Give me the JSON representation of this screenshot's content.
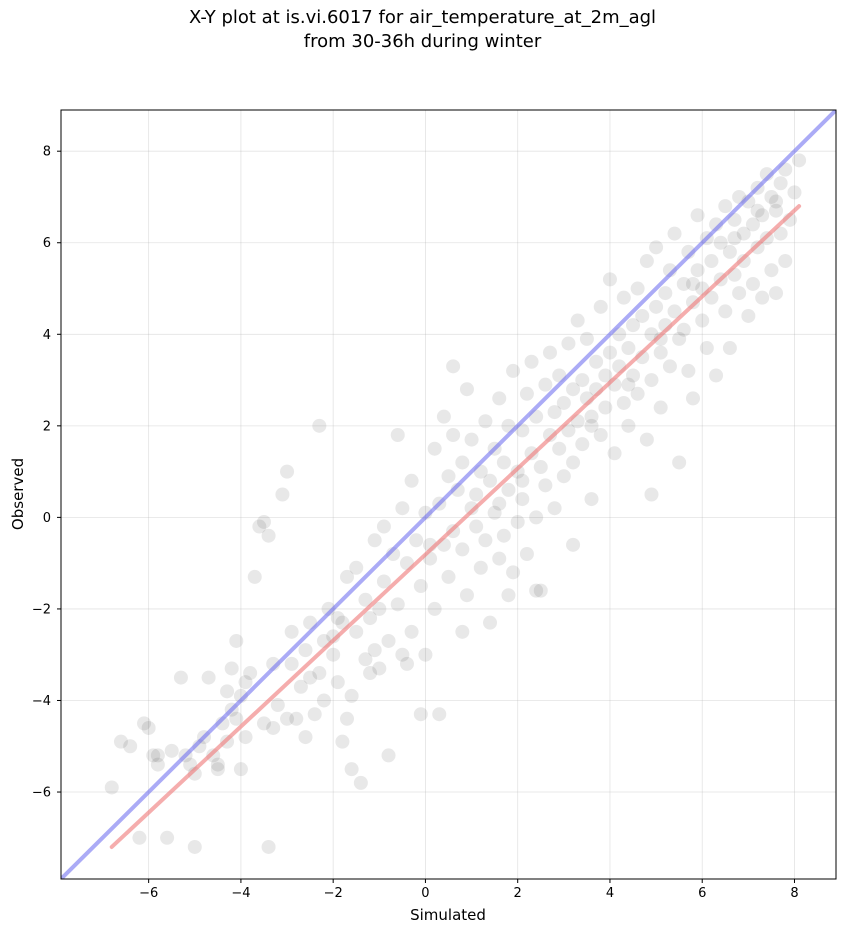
{
  "chart_data": {
    "type": "scatter",
    "title_line1": "X-Y plot at is.vi.6017 for air_temperature_at_2m_agl",
    "title_line2": "from 30-36h during winter",
    "xlabel": "Simulated",
    "ylabel": "Observed",
    "xlim": [
      -7.9,
      8.9
    ],
    "ylim": [
      -7.9,
      8.9
    ],
    "xticks": [
      -6,
      -4,
      -2,
      0,
      2,
      4,
      6,
      8
    ],
    "yticks": [
      -6,
      -4,
      -2,
      0,
      2,
      4,
      6,
      8
    ],
    "xtick_labels": [
      "−6",
      "−4",
      "−2",
      "0",
      "2",
      "4",
      "6",
      "8"
    ],
    "ytick_labels": [
      "−6",
      "−4",
      "−2",
      "0",
      "2",
      "4",
      "6",
      "8"
    ],
    "grid": true,
    "point_color": "#444444",
    "one_to_one_line": {
      "x": [
        -7.9,
        8.9
      ],
      "y": [
        -7.9,
        8.9
      ],
      "color": "#6666ee"
    },
    "regression_line": {
      "x": [
        -6.8,
        8.1
      ],
      "y": [
        -7.2,
        6.8
      ],
      "color": "#ee7777"
    },
    "points": [
      [
        -6.8,
        -5.9
      ],
      [
        -6.6,
        -4.9
      ],
      [
        -6.4,
        -5.0
      ],
      [
        -6.2,
        -7.0
      ],
      [
        -6.1,
        -4.5
      ],
      [
        -6.0,
        -4.6
      ],
      [
        -5.9,
        -5.2
      ],
      [
        -5.8,
        -5.4
      ],
      [
        -5.6,
        -7.0
      ],
      [
        -5.5,
        -5.1
      ],
      [
        -5.3,
        -3.5
      ],
      [
        -5.2,
        -5.2
      ],
      [
        -5.1,
        -5.4
      ],
      [
        -5.0,
        -7.2
      ],
      [
        -5.0,
        -5.6
      ],
      [
        -4.9,
        -5.0
      ],
      [
        -4.8,
        -4.8
      ],
      [
        -4.7,
        -3.5
      ],
      [
        -4.6,
        -5.2
      ],
      [
        -4.5,
        -5.4
      ],
      [
        -4.4,
        -4.5
      ],
      [
        -4.3,
        -3.8
      ],
      [
        -4.3,
        -4.9
      ],
      [
        -4.2,
        -4.2
      ],
      [
        -4.2,
        -3.3
      ],
      [
        -4.1,
        -2.7
      ],
      [
        -4.1,
        -4.4
      ],
      [
        -4.0,
        -3.9
      ],
      [
        -4.0,
        -5.5
      ],
      [
        -3.9,
        -3.6
      ],
      [
        -3.8,
        -3.4
      ],
      [
        -3.7,
        -1.3
      ],
      [
        -3.6,
        -0.2
      ],
      [
        -3.5,
        -0.1
      ],
      [
        -3.4,
        -7.2
      ],
      [
        -3.4,
        -0.4
      ],
      [
        -3.3,
        -4.6
      ],
      [
        -3.3,
        -3.2
      ],
      [
        -3.2,
        -4.1
      ],
      [
        -3.1,
        0.5
      ],
      [
        -3.0,
        1.0
      ],
      [
        -3.0,
        -4.4
      ],
      [
        -2.9,
        -2.5
      ],
      [
        -2.8,
        -4.4
      ],
      [
        -2.7,
        -3.7
      ],
      [
        -2.6,
        -2.9
      ],
      [
        -2.5,
        -2.3
      ],
      [
        -2.5,
        -3.5
      ],
      [
        -2.4,
        -4.3
      ],
      [
        -2.3,
        -3.4
      ],
      [
        -2.2,
        -2.7
      ],
      [
        -2.2,
        -4.0
      ],
      [
        -2.1,
        -2.0
      ],
      [
        -2.0,
        -2.6
      ],
      [
        -2.0,
        -3.0
      ],
      [
        -1.9,
        -3.6
      ],
      [
        -1.8,
        -4.9
      ],
      [
        -1.8,
        -2.3
      ],
      [
        -1.7,
        -1.3
      ],
      [
        -1.7,
        -4.4
      ],
      [
        -1.6,
        -3.9
      ],
      [
        -1.5,
        -2.5
      ],
      [
        -1.5,
        -1.1
      ],
      [
        -1.4,
        -5.8
      ],
      [
        -1.3,
        -3.1
      ],
      [
        -1.3,
        -1.8
      ],
      [
        -1.2,
        -2.2
      ],
      [
        -1.1,
        -0.5
      ],
      [
        -1.0,
        -3.3
      ],
      [
        -1.0,
        -2.0
      ],
      [
        -0.9,
        -1.4
      ],
      [
        -0.8,
        -5.2
      ],
      [
        -0.8,
        -2.7
      ],
      [
        -0.7,
        -0.8
      ],
      [
        -0.6,
        -1.9
      ],
      [
        -0.5,
        -3.0
      ],
      [
        -0.5,
        0.2
      ],
      [
        -0.4,
        -1.0
      ],
      [
        -0.3,
        0.8
      ],
      [
        -0.3,
        -2.5
      ],
      [
        -0.2,
        -0.5
      ],
      [
        -0.1,
        -4.3
      ],
      [
        -0.1,
        -1.5
      ],
      [
        0.0,
        -3.0
      ],
      [
        0.0,
        0.1
      ],
      [
        0.1,
        -0.9
      ],
      [
        0.2,
        1.5
      ],
      [
        0.2,
        -2.0
      ],
      [
        0.3,
        0.3
      ],
      [
        0.4,
        -0.6
      ],
      [
        0.4,
        2.2
      ],
      [
        0.5,
        0.9
      ],
      [
        0.5,
        -1.3
      ],
      [
        0.6,
        1.8
      ],
      [
        0.6,
        -0.3
      ],
      [
        0.7,
        0.6
      ],
      [
        0.8,
        -0.7
      ],
      [
        0.8,
        1.2
      ],
      [
        0.9,
        2.8
      ],
      [
        0.9,
        -1.7
      ],
      [
        1.0,
        0.2
      ],
      [
        1.0,
        1.7
      ],
      [
        1.1,
        -0.2
      ],
      [
        1.1,
        0.5
      ],
      [
        1.2,
        1.0
      ],
      [
        1.2,
        -1.1
      ],
      [
        1.3,
        2.1
      ],
      [
        1.3,
        -0.5
      ],
      [
        1.4,
        0.8
      ],
      [
        1.4,
        -2.3
      ],
      [
        1.5,
        1.5
      ],
      [
        1.5,
        0.1
      ],
      [
        1.6,
        -0.9
      ],
      [
        1.6,
        2.6
      ],
      [
        1.7,
        1.2
      ],
      [
        1.7,
        -0.4
      ],
      [
        1.8,
        0.6
      ],
      [
        1.8,
        2.0
      ],
      [
        1.9,
        -1.2
      ],
      [
        1.9,
        3.2
      ],
      [
        2.0,
        1.0
      ],
      [
        2.0,
        -0.1
      ],
      [
        2.1,
        1.9
      ],
      [
        2.1,
        0.4
      ],
      [
        2.2,
        2.7
      ],
      [
        2.2,
        -0.8
      ],
      [
        2.3,
        1.4
      ],
      [
        2.3,
        3.4
      ],
      [
        2.4,
        0.0
      ],
      [
        2.4,
        2.2
      ],
      [
        2.5,
        1.1
      ],
      [
        2.5,
        -1.6
      ],
      [
        2.6,
        2.9
      ],
      [
        2.6,
        0.7
      ],
      [
        2.7,
        1.8
      ],
      [
        2.7,
        3.6
      ],
      [
        2.8,
        2.3
      ],
      [
        2.8,
        0.2
      ],
      [
        2.9,
        1.5
      ],
      [
        2.9,
        3.1
      ],
      [
        3.0,
        2.5
      ],
      [
        3.0,
        0.9
      ],
      [
        3.1,
        1.9
      ],
      [
        3.1,
        3.8
      ],
      [
        3.2,
        2.8
      ],
      [
        3.2,
        1.2
      ],
      [
        3.3,
        2.1
      ],
      [
        3.3,
        4.3
      ],
      [
        3.4,
        3.0
      ],
      [
        3.4,
        1.6
      ],
      [
        3.5,
        2.6
      ],
      [
        3.5,
        3.9
      ],
      [
        3.6,
        2.2
      ],
      [
        3.6,
        0.4
      ],
      [
        3.7,
        3.4
      ],
      [
        3.7,
        2.8
      ],
      [
        3.8,
        1.8
      ],
      [
        3.8,
        4.6
      ],
      [
        3.9,
        3.1
      ],
      [
        3.9,
        2.4
      ],
      [
        4.0,
        3.6
      ],
      [
        4.0,
        5.2
      ],
      [
        4.1,
        2.9
      ],
      [
        4.1,
        1.4
      ],
      [
        4.2,
        4.0
      ],
      [
        4.2,
        3.3
      ],
      [
        4.3,
        2.5
      ],
      [
        4.3,
        4.8
      ],
      [
        4.4,
        3.7
      ],
      [
        4.4,
        2.0
      ],
      [
        4.5,
        4.2
      ],
      [
        4.5,
        3.1
      ],
      [
        4.6,
        5.0
      ],
      [
        4.6,
        2.7
      ],
      [
        4.7,
        4.4
      ],
      [
        4.7,
        3.5
      ],
      [
        4.8,
        5.6
      ],
      [
        4.8,
        1.7
      ],
      [
        4.9,
        4.0
      ],
      [
        4.9,
        3.0
      ],
      [
        5.0,
        4.6
      ],
      [
        5.0,
        5.9
      ],
      [
        5.1,
        3.6
      ],
      [
        5.1,
        2.4
      ],
      [
        5.2,
        4.9
      ],
      [
        5.2,
        4.2
      ],
      [
        5.3,
        3.3
      ],
      [
        5.3,
        5.4
      ],
      [
        5.4,
        4.5
      ],
      [
        5.4,
        6.2
      ],
      [
        5.5,
        3.9
      ],
      [
        5.5,
        1.2
      ],
      [
        5.6,
        5.1
      ],
      [
        5.6,
        4.1
      ],
      [
        5.7,
        3.2
      ],
      [
        5.7,
        5.8
      ],
      [
        5.8,
        4.7
      ],
      [
        5.8,
        2.6
      ],
      [
        5.9,
        5.4
      ],
      [
        5.9,
        6.6
      ],
      [
        6.0,
        4.3
      ],
      [
        6.0,
        5.0
      ],
      [
        6.1,
        3.7
      ],
      [
        6.1,
        6.1
      ],
      [
        6.2,
        5.6
      ],
      [
        6.2,
        4.8
      ],
      [
        6.3,
        6.4
      ],
      [
        6.3,
        3.1
      ],
      [
        6.4,
        5.2
      ],
      [
        6.4,
        6.0
      ],
      [
        6.5,
        4.5
      ],
      [
        6.5,
        6.8
      ],
      [
        6.6,
        5.8
      ],
      [
        6.6,
        3.7
      ],
      [
        6.7,
        6.5
      ],
      [
        6.7,
        5.3
      ],
      [
        6.8,
        7.0
      ],
      [
        6.8,
        4.9
      ],
      [
        6.9,
        6.2
      ],
      [
        6.9,
        5.6
      ],
      [
        7.0,
        6.9
      ],
      [
        7.0,
        4.4
      ],
      [
        7.1,
        6.4
      ],
      [
        7.1,
        5.1
      ],
      [
        7.2,
        7.2
      ],
      [
        7.2,
        5.9
      ],
      [
        7.3,
        6.6
      ],
      [
        7.3,
        4.8
      ],
      [
        7.4,
        7.5
      ],
      [
        7.4,
        6.1
      ],
      [
        7.5,
        5.4
      ],
      [
        7.5,
        7.0
      ],
      [
        7.6,
        6.7
      ],
      [
        7.6,
        4.9
      ],
      [
        7.7,
        7.3
      ],
      [
        7.7,
        6.2
      ],
      [
        7.8,
        5.6
      ],
      [
        7.8,
        7.6
      ],
      [
        7.9,
        6.5
      ],
      [
        8.0,
        7.1
      ],
      [
        8.1,
        7.8
      ],
      [
        -2.3,
        2.0
      ],
      [
        -1.2,
        -3.4
      ],
      [
        0.3,
        -4.3
      ],
      [
        -0.4,
        -3.2
      ],
      [
        -2.6,
        -4.8
      ],
      [
        -1.6,
        -5.5
      ],
      [
        0.6,
        3.3
      ],
      [
        1.8,
        -1.7
      ],
      [
        2.4,
        -1.6
      ],
      [
        3.2,
        -0.6
      ],
      [
        4.9,
        0.5
      ],
      [
        0.8,
        -2.5
      ],
      [
        -0.6,
        1.8
      ],
      [
        -1.1,
        -2.9
      ],
      [
        -3.9,
        -4.8
      ],
      [
        -4.5,
        -5.5
      ],
      [
        -5.8,
        -5.2
      ],
      [
        -3.5,
        -4.5
      ],
      [
        -2.9,
        -3.2
      ],
      [
        -1.9,
        -2.2
      ],
      [
        -0.9,
        -0.2
      ],
      [
        0.1,
        -0.6
      ],
      [
        1.6,
        0.3
      ],
      [
        2.1,
        0.8
      ],
      [
        3.6,
        2.0
      ],
      [
        4.4,
        2.9
      ],
      [
        5.1,
        3.9
      ],
      [
        5.8,
        5.1
      ],
      [
        6.7,
        6.1
      ],
      [
        7.2,
        6.7
      ],
      [
        7.6,
        6.9
      ]
    ]
  }
}
